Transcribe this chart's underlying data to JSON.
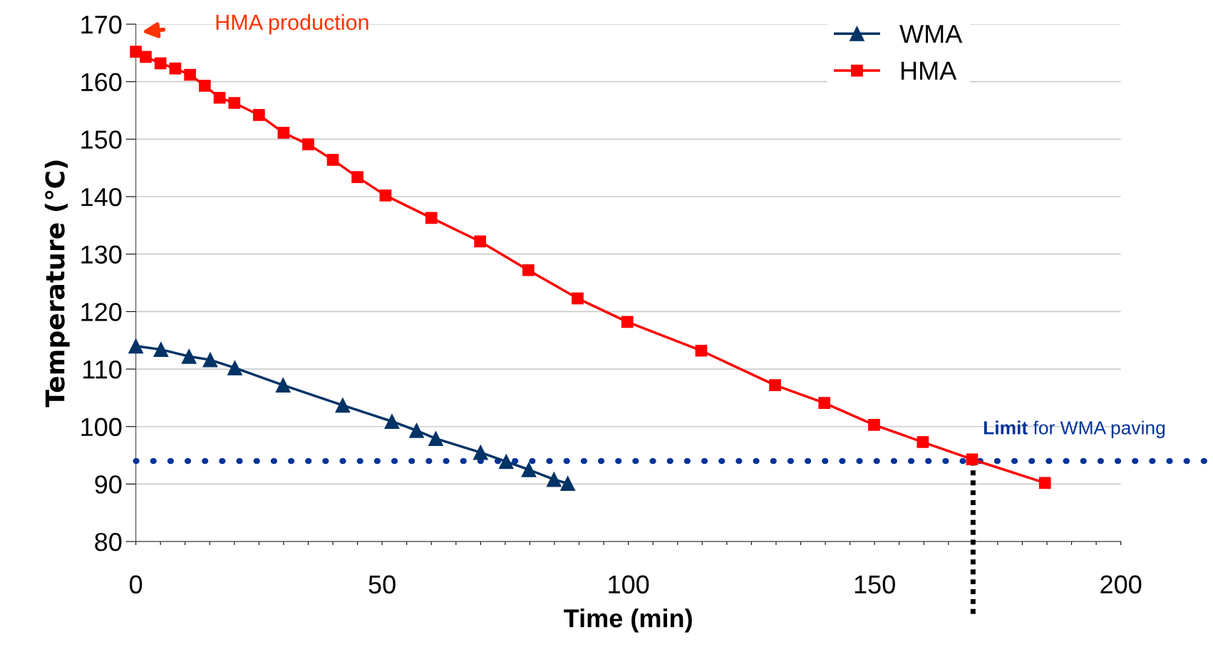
{
  "chart_data": {
    "type": "line",
    "xlabel": "Time (min)",
    "ylabel": "Temperature (℃)",
    "xlim": [
      0,
      200
    ],
    "ylim": [
      80,
      170
    ],
    "xticks": [
      0,
      {
        "value": 5,
        "label": null
      },
      {
        "value": 10,
        "label": null
      },
      {
        "value": 15,
        "label": null
      },
      {
        "value": 20,
        "label": null
      },
      {
        "value": 25,
        "label": null
      },
      {
        "value": 30,
        "label": null
      },
      {
        "value": 35,
        "label": null
      },
      {
        "value": 40,
        "label": null
      },
      {
        "value": 45,
        "label": null
      },
      50,
      {
        "value": 55,
        "label": null
      },
      {
        "value": 60,
        "label": null
      },
      {
        "value": 65,
        "label": null
      },
      {
        "value": 70,
        "label": null
      },
      {
        "value": 75,
        "label": null
      },
      {
        "value": 80,
        "label": null
      },
      {
        "value": 85,
        "label": null
      },
      {
        "value": 90,
        "label": null
      },
      {
        "value": 95,
        "label": null
      },
      100,
      {
        "value": 105,
        "label": null
      },
      {
        "value": 110,
        "label": null
      },
      {
        "value": 115,
        "label": null
      },
      {
        "value": 120,
        "label": null
      },
      {
        "value": 125,
        "label": null
      },
      {
        "value": 130,
        "label": null
      },
      {
        "value": 135,
        "label": null
      },
      {
        "value": 140,
        "label": null
      },
      {
        "value": 145,
        "label": null
      },
      150,
      {
        "value": 155,
        "label": null
      },
      {
        "value": 160,
        "label": null
      },
      {
        "value": 165,
        "label": null
      },
      {
        "value": 170,
        "label": null
      },
      {
        "value": 175,
        "label": null
      },
      {
        "value": 180,
        "label": null
      },
      {
        "value": 185,
        "label": null
      },
      {
        "value": 190,
        "label": null
      },
      {
        "value": 195,
        "label": null
      },
      200
    ],
    "yticks": [
      80,
      90,
      100,
      110,
      120,
      130,
      140,
      150,
      160,
      170
    ],
    "grid": "y",
    "legend": "top right",
    "line_style": "solid",
    "series": [
      {
        "name": "WMA",
        "color": "#003366",
        "marker": "triangle",
        "x": [
          0,
          5.1,
          10.8,
          15.1,
          20.1,
          29.9,
          42.0,
          52.0,
          57.0,
          60.9,
          70.0,
          75.2,
          79.8,
          84.9,
          87.7
        ],
        "values": [
          114.0,
          113.4,
          112.2,
          111.6,
          110.2,
          107.2,
          103.7,
          100.9,
          99.3,
          97.9,
          95.5,
          93.9,
          92.5,
          90.8,
          90.1
        ]
      },
      {
        "name": "HMA",
        "color": "#ff0000",
        "marker": "square",
        "x": [
          0,
          2,
          5,
          8,
          11,
          14,
          17,
          20,
          25,
          30,
          35,
          40,
          45,
          50.7,
          60.0,
          69.9,
          79.7,
          89.7,
          99.8,
          114.8,
          129.8,
          139.8,
          149.9,
          159.8,
          169.8,
          184.6
        ],
        "values": [
          165.2,
          164.3,
          163.2,
          162.3,
          161.2,
          159.3,
          157.2,
          156.3,
          154.2,
          151.1,
          149.1,
          146.4,
          143.4,
          140.2,
          136.3,
          132.2,
          127.2,
          122.3,
          118.2,
          113.2,
          107.2,
          104.1,
          100.3,
          97.3,
          94.3,
          90.2
        ]
      }
    ],
    "ref_lines": [
      {
        "axis": "y",
        "value": 94,
        "label": "Limit for WMA paving",
        "color": "#003399",
        "line_style": "dotted"
      },
      {
        "axis": "x",
        "value": 170,
        "label": null,
        "color": "#000000",
        "line_style": "dotted"
      }
    ],
    "annotations": [
      "HMA production"
    ]
  }
}
